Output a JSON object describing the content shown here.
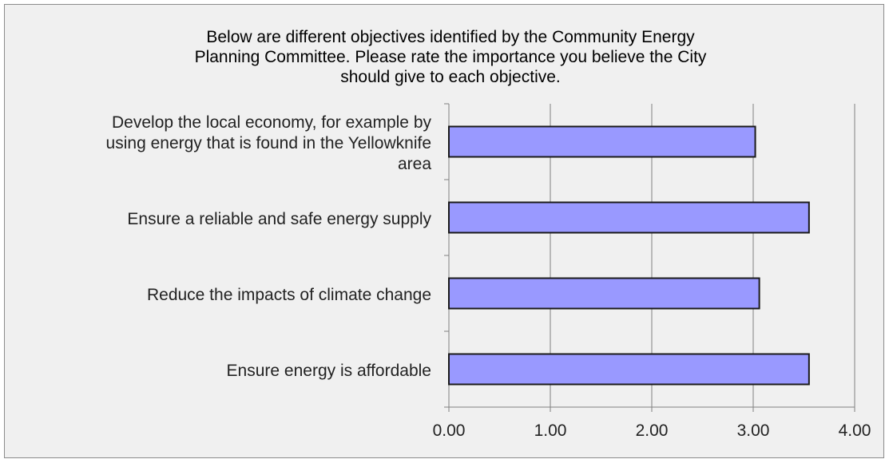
{
  "chart_data": {
    "type": "bar",
    "orientation": "horizontal",
    "title_lines": [
      "Below are different objectives identified by the Community Energy",
      "Planning Committee.  Please rate the importance you believe the City",
      "should give to each objective."
    ],
    "categories": [
      "Develop the local economy, for example by using energy that is found in the Yellowknife area",
      "Ensure a reliable and safe energy supply",
      "Reduce the impacts of climate change",
      "Ensure energy is affordable"
    ],
    "category_lines": [
      [
        "Develop the local economy, for example by",
        "using energy that is found in the Yellowknife",
        "area"
      ],
      [
        "Ensure a reliable and safe energy supply"
      ],
      [
        "Reduce the impacts of climate change"
      ],
      [
        "Ensure energy is affordable"
      ]
    ],
    "values": [
      3.02,
      3.55,
      3.06,
      3.55
    ],
    "xlim": [
      0,
      4
    ],
    "x_ticks": [
      "0.00",
      "1.00",
      "2.00",
      "3.00",
      "4.00"
    ],
    "xlabel": "",
    "ylabel": "",
    "grid": "vertical",
    "legend": "none",
    "colors": {
      "bar_fill": "#9999ff",
      "bar_stroke": "#1a1a1a",
      "gridline": "#808080",
      "background": "#f0f0f0"
    }
  }
}
